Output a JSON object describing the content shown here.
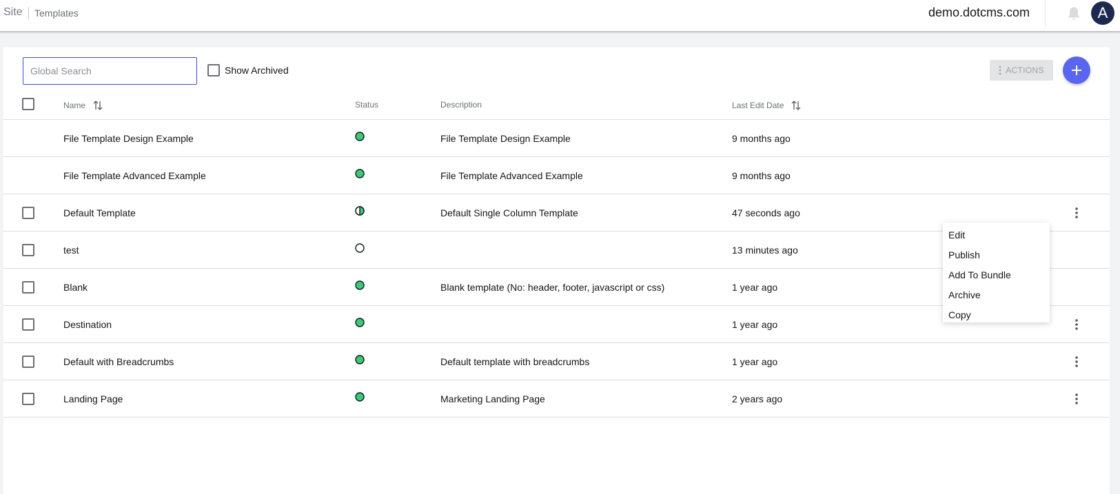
{
  "topbar": {
    "breadcrumb_site": "Site",
    "breadcrumb_page": "Templates",
    "site_name": "demo.dotcms.com",
    "avatar_initial": "A"
  },
  "toolbar": {
    "search_placeholder": "Global Search",
    "show_archived_label": "Show Archived",
    "actions_label": "ACTIONS"
  },
  "table": {
    "columns": {
      "name": "Name",
      "status": "Status",
      "description": "Description",
      "last_edit": "Last Edit Date"
    },
    "rows": [
      {
        "name": "File Template Design Example",
        "status": "published",
        "description": "File Template Design Example",
        "last_edit": "9 months ago",
        "checkbox": false,
        "menu": false
      },
      {
        "name": "File Template Advanced Example",
        "status": "published",
        "description": "File Template Advanced Example",
        "last_edit": "9 months ago",
        "checkbox": false,
        "menu": false
      },
      {
        "name": "Default Template",
        "status": "changed",
        "description": "Default Single Column Template",
        "last_edit": "47 seconds ago",
        "checkbox": true,
        "menu": true
      },
      {
        "name": "test",
        "status": "draft",
        "description": "",
        "last_edit": "13 minutes ago",
        "checkbox": true,
        "menu": false
      },
      {
        "name": "Blank",
        "status": "published",
        "description": "Blank template (No: header, footer, javascript or css)",
        "last_edit": "1 year ago",
        "checkbox": true,
        "menu": false
      },
      {
        "name": "Destination",
        "status": "published",
        "description": "",
        "last_edit": "1 year ago",
        "checkbox": true,
        "menu": true
      },
      {
        "name": "Default with Breadcrumbs",
        "status": "published",
        "description": "Default template with breadcrumbs",
        "last_edit": "1 year ago",
        "checkbox": true,
        "menu": true
      },
      {
        "name": "Landing Page",
        "status": "published",
        "description": "Marketing Landing Page",
        "last_edit": "2 years ago",
        "checkbox": true,
        "menu": true
      }
    ]
  },
  "context_menu": {
    "items": [
      "Edit",
      "Publish",
      "Add To Bundle",
      "Archive",
      "Copy"
    ]
  },
  "colors": {
    "accent": "#5a66f0",
    "search_border": "#3c4fcf",
    "status_published": "#3cc97a",
    "avatar_bg": "#1c2a4f"
  },
  "icons": {
    "bell": "bell-icon",
    "add": "plus-icon",
    "actions": "vertical-dots-icon",
    "sort": "sort-arrows-icon",
    "row_menu": "kebab-menu-icon"
  }
}
